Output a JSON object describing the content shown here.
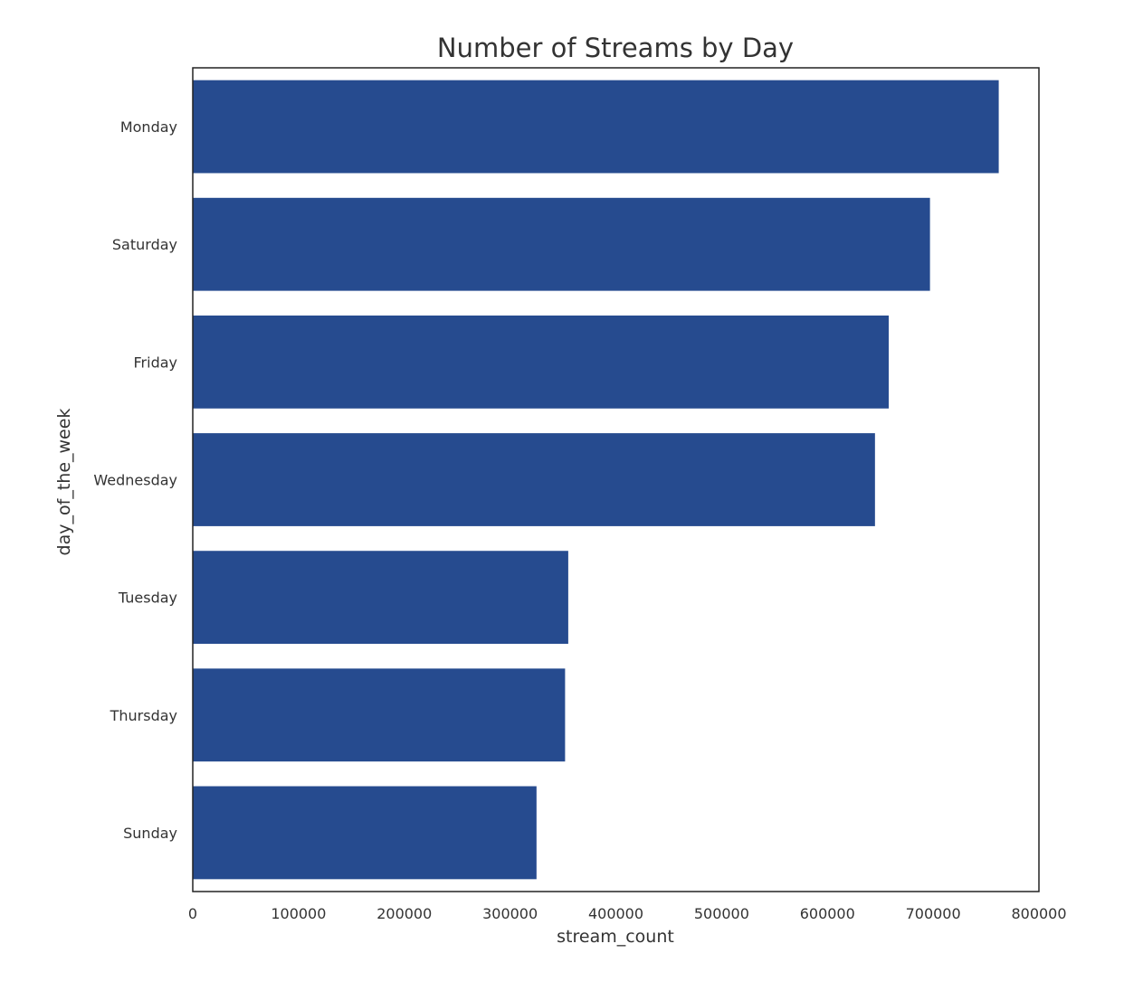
{
  "chart_data": {
    "type": "bar",
    "orientation": "horizontal",
    "title": "Number of Streams by Day",
    "xlabel": "stream_count",
    "ylabel": "day_of_the_week",
    "categories": [
      "Monday",
      "Saturday",
      "Friday",
      "Wednesday",
      "Tuesday",
      "Thursday",
      "Sunday"
    ],
    "values": [
      762000,
      697000,
      658000,
      645000,
      355000,
      352000,
      325000
    ],
    "xlim": [
      0,
      800000
    ],
    "xticks": [
      0,
      100000,
      200000,
      300000,
      400000,
      500000,
      600000,
      700000,
      800000
    ],
    "xtick_labels": [
      "0",
      "100000",
      "200000",
      "300000",
      "400000",
      "500000",
      "600000",
      "700000",
      "800000"
    ],
    "grid": false,
    "bar_color": "#264b8f"
  }
}
